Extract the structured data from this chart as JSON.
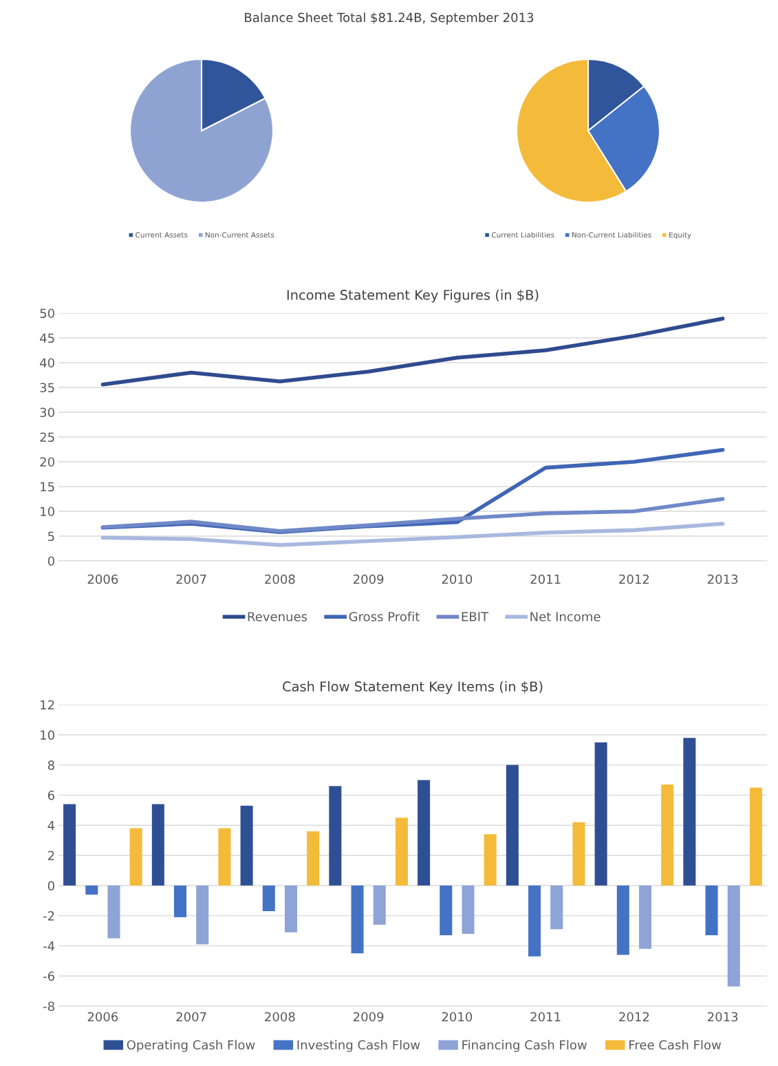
{
  "chart_data": [
    {
      "type": "pie",
      "title": "Balance Sheet Total $81.24B, September 2013",
      "categories": [
        "Current Assets",
        "Non-Current Assets"
      ],
      "values": [
        17.5,
        82.5
      ],
      "colors": [
        "#30559a",
        "#8fa3d3"
      ],
      "legend": "bottom"
    },
    {
      "type": "pie",
      "categories": [
        "Current Liabilities",
        "Non-Current Liabilities",
        "Equity"
      ],
      "values": [
        14.3,
        26.8,
        58.9
      ],
      "colors": [
        "#30559a",
        "#4472c4",
        "#f4bb3a"
      ],
      "legend": "bottom"
    },
    {
      "type": "line",
      "title": "Income Statement Key Figures (in $B)",
      "categories": [
        "2006",
        "2007",
        "2008",
        "2009",
        "2010",
        "2011",
        "2012",
        "2013"
      ],
      "ylim": [
        0,
        50
      ],
      "yticks": [
        0,
        5,
        10,
        15,
        20,
        25,
        30,
        35,
        40,
        45,
        50
      ],
      "grid": "y",
      "legend": "bottom",
      "series": [
        {
          "name": "Revenues",
          "color": "#2f4b8f",
          "values": [
            35.6,
            38.0,
            36.2,
            38.2,
            41.0,
            42.5,
            45.4,
            48.9
          ]
        },
        {
          "name": "Gross Profit",
          "color": "#3f66b5",
          "values": [
            6.7,
            7.5,
            5.8,
            7.0,
            7.8,
            18.8,
            20.0,
            22.4
          ]
        },
        {
          "name": "EBIT",
          "color": "#6f88c8",
          "values": [
            6.8,
            7.9,
            6.0,
            7.2,
            8.5,
            9.6,
            10.0,
            12.5
          ]
        },
        {
          "name": "Net Income",
          "color": "#a9b8df",
          "values": [
            4.7,
            4.4,
            3.2,
            4.0,
            4.8,
            5.7,
            6.2,
            7.5
          ]
        }
      ]
    },
    {
      "type": "bar",
      "title": "Cash Flow Statement Key Items (in $B)",
      "categories": [
        "2006",
        "2007",
        "2008",
        "2009",
        "2010",
        "2011",
        "2012",
        "2013"
      ],
      "ylim": [
        -8,
        12
      ],
      "yticks": [
        -8,
        -6,
        -4,
        -2,
        0,
        2,
        4,
        6,
        8,
        10,
        12
      ],
      "grid": "y",
      "legend": "bottom",
      "series": [
        {
          "name": "Operating Cash Flow",
          "color": "#2f4f94",
          "values": [
            5.4,
            5.4,
            5.3,
            6.6,
            7.0,
            8.0,
            9.5,
            9.8
          ]
        },
        {
          "name": "Investing Cash Flow",
          "color": "#4472c4",
          "values": [
            -0.6,
            -2.1,
            -1.7,
            -4.5,
            -3.3,
            -4.7,
            -4.6,
            -3.3
          ]
        },
        {
          "name": "Financing Cash Flow",
          "color": "#8ea3d6",
          "values": [
            -3.5,
            -3.9,
            -3.1,
            -2.6,
            -3.2,
            -2.9,
            -4.2,
            -6.7
          ]
        },
        {
          "name": "Free Cash Flow",
          "color": "#f4bb3a",
          "values": [
            3.8,
            3.8,
            3.6,
            4.5,
            3.4,
            4.2,
            6.7,
            6.5
          ]
        }
      ]
    }
  ]
}
